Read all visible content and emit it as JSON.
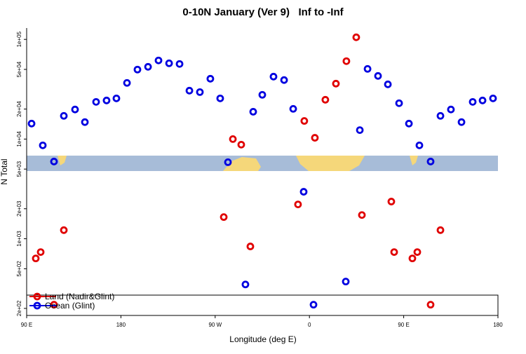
{
  "chart_data": {
    "type": "scatter",
    "title": "0-10N January (Ver 9)   Inf to -Inf",
    "xlabel": "Longitude (deg E)",
    "ylabel": "N Total",
    "log_y": true,
    "legend": "bottom-left",
    "xlim": [
      90,
      540
    ],
    "ylim": [
      170,
      130000
    ],
    "xticks": [
      {
        "value": 90,
        "label": "90 E"
      },
      {
        "value": 180,
        "label": "180"
      },
      {
        "value": 270,
        "label": "90 W"
      },
      {
        "value": 360,
        "label": "0"
      },
      {
        "value": 450,
        "label": "90 E"
      },
      {
        "value": 540,
        "label": "180"
      }
    ],
    "yticks": [
      {
        "value": 200,
        "label": "2e+02"
      },
      {
        "value": 500,
        "label": "5e+02"
      },
      {
        "value": 1000,
        "label": "1e+03"
      },
      {
        "value": 2000,
        "label": "2e+03"
      },
      {
        "value": 5000,
        "label": "5e+03"
      },
      {
        "value": 10000,
        "label": "1e+04"
      },
      {
        "value": 20000,
        "label": "2e+04"
      },
      {
        "value": 50000,
        "label": "5e+04"
      },
      {
        "value": 100000,
        "label": "1e+05"
      }
    ],
    "series": [
      {
        "name": "Land (Nadir&Glint)",
        "color": "#e00000",
        "x": [
          98.7,
          103.4,
          116.1,
          125.5,
          278.2,
          286.9,
          294.9,
          303.6,
          349.1,
          355.1,
          365.2,
          375.2,
          385.3,
          395.3,
          404.7,
          410.1,
          438.2,
          440.9,
          458.3,
          463,
          475.7,
          485.1
        ],
        "values": [
          635,
          735,
          218,
          1220,
          1650,
          10000,
          8790,
          837,
          2210,
          15200,
          10300,
          24800,
          36000,
          60500,
          105000,
          1730,
          2360,
          735,
          635,
          735,
          218,
          1220
        ]
      },
      {
        "name": "Ocean (Glint)",
        "color": "#0000e0",
        "x": [
          94.7,
          105.4,
          116.1,
          125.5,
          136.2,
          145.6,
          156.3,
          166.3,
          175.7,
          185.8,
          195.8,
          205.9,
          215.9,
          226,
          236,
          245.4,
          255.4,
          265.4,
          274.8,
          282.2,
          298.9,
          306.3,
          315,
          325.7,
          335.8,
          344.5,
          354.5,
          363.9,
          394.7,
          408.1,
          415.5,
          425.5,
          434.9,
          445.6,
          455,
          465,
          475.7,
          485.1,
          495.1,
          505.2,
          515.9,
          525.3,
          535.3
        ],
        "values": [
          14300,
          8650,
          5950,
          17100,
          19800,
          14800,
          23600,
          24400,
          25600,
          36600,
          49800,
          53100,
          61500,
          57600,
          56700,
          30600,
          29600,
          40300,
          25600,
          5860,
          348,
          18800,
          27800,
          42300,
          39100,
          20100,
          2960,
          218,
          372,
          12300,
          50600,
          43000,
          35400,
          22900,
          14300,
          8650,
          5950,
          17100,
          19800,
          14800,
          23600,
          24400,
          25600
        ]
      }
    ]
  }
}
